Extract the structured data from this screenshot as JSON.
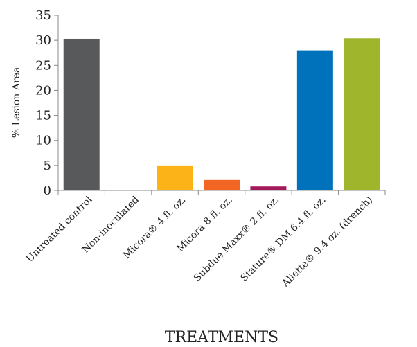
{
  "chart_data": {
    "type": "bar",
    "title": "",
    "xlabel": "TREATMENTS",
    "ylabel": "% Lesion Area",
    "ylim": [
      0,
      35
    ],
    "yticks": [
      0,
      5,
      10,
      15,
      20,
      25,
      30,
      35
    ],
    "grid": false,
    "legend": "none",
    "categories": [
      "Untreated control",
      "Non-inoculated",
      "Micora® 4 fl. oz.",
      "Micora 8 fl. oz.",
      "Subdue Maxx® 2 fl. oz.",
      "Stature® DM 6.4 fl. oz.",
      "Aliette® 9.4 oz. (drench)"
    ],
    "values": [
      30.3,
      0,
      5.0,
      2.1,
      0.8,
      28.0,
      30.4
    ],
    "colors": [
      "#58595b",
      "#ffffff",
      "#fbb317",
      "#f26522",
      "#a3195b",
      "#0072bc",
      "#9fb52c"
    ]
  }
}
